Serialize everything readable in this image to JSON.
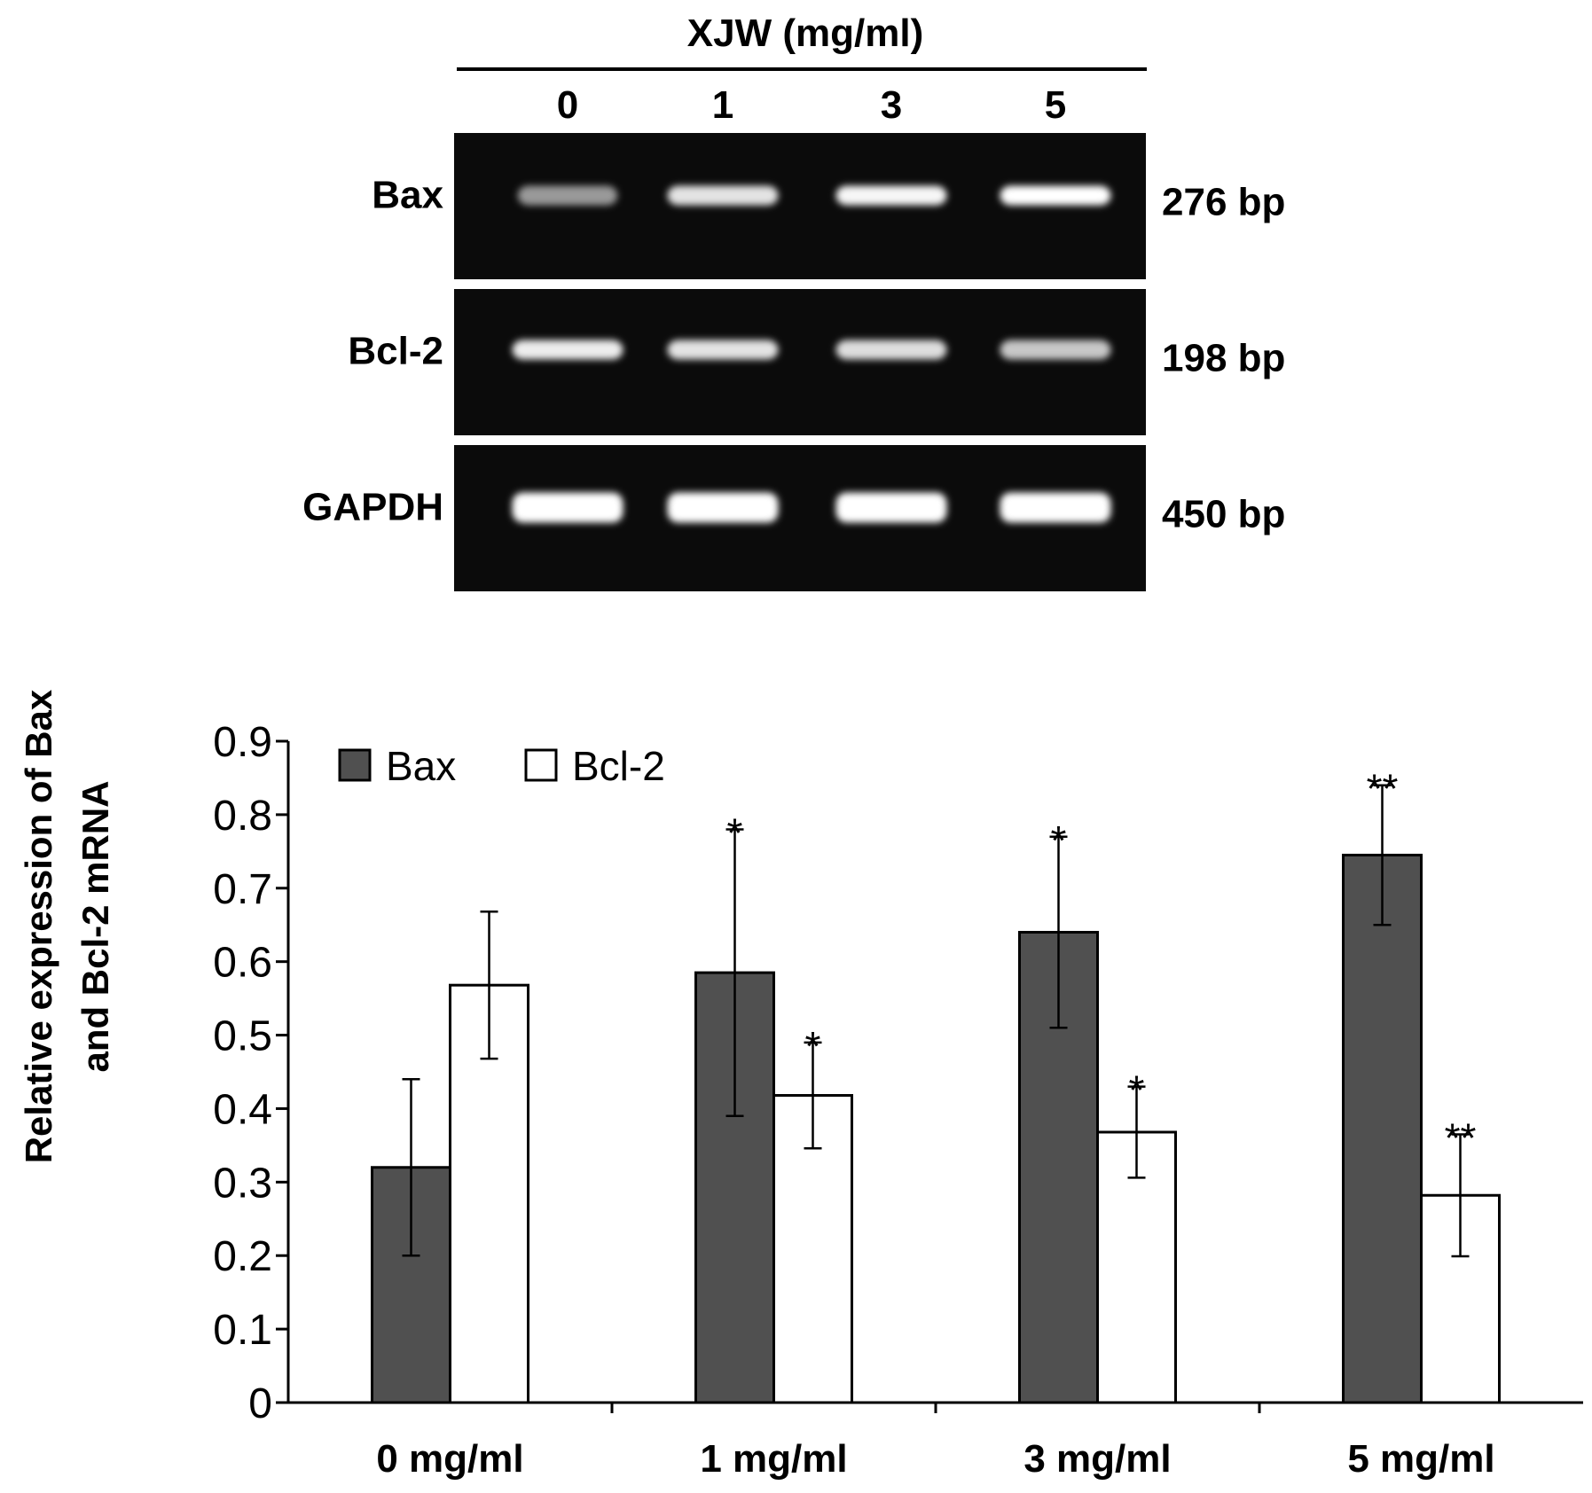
{
  "gel": {
    "title": "XJW (mg/ml)",
    "lanes": [
      "0",
      "1",
      "3",
      "5"
    ],
    "rows": [
      {
        "name": "Bax",
        "size": "276 bp",
        "intensity": [
          0.45,
          0.85,
          0.95,
          1.0
        ]
      },
      {
        "name": "Bcl-2",
        "size": "198 bp",
        "intensity": [
          0.9,
          0.85,
          0.82,
          0.7
        ]
      },
      {
        "name": "GAPDH",
        "size": "450 bp",
        "intensity": [
          1.0,
          1.0,
          1.0,
          1.0
        ]
      }
    ]
  },
  "chart_data": {
    "type": "bar",
    "categories": [
      "0 mg/ml",
      "1 mg/ml",
      "3 mg/ml",
      "5 mg/ml"
    ],
    "series": [
      {
        "name": "Bax",
        "color": "#505050",
        "values": [
          0.32,
          0.585,
          0.64,
          0.745
        ],
        "errors": [
          0.12,
          0.195,
          0.13,
          0.095
        ],
        "annotations": [
          "",
          "*",
          "*",
          "**"
        ]
      },
      {
        "name": "Bcl-2",
        "color": "#ffffff",
        "values": [
          0.568,
          0.418,
          0.368,
          0.282
        ],
        "errors": [
          0.1,
          0.072,
          0.062,
          0.083
        ],
        "annotations": [
          "",
          "*",
          "*",
          "**"
        ]
      }
    ],
    "ylabel_line1": "Relative expression of Bax",
    "ylabel_line2": "and Bcl-2 mRNA",
    "ylim": [
      0,
      0.9
    ],
    "yticks": [
      "0",
      "0.1",
      "0.2",
      "0.3",
      "0.4",
      "0.5",
      "0.6",
      "0.7",
      "0.8",
      "0.9"
    ],
    "legend_position": "top-left",
    "grid": false
  }
}
